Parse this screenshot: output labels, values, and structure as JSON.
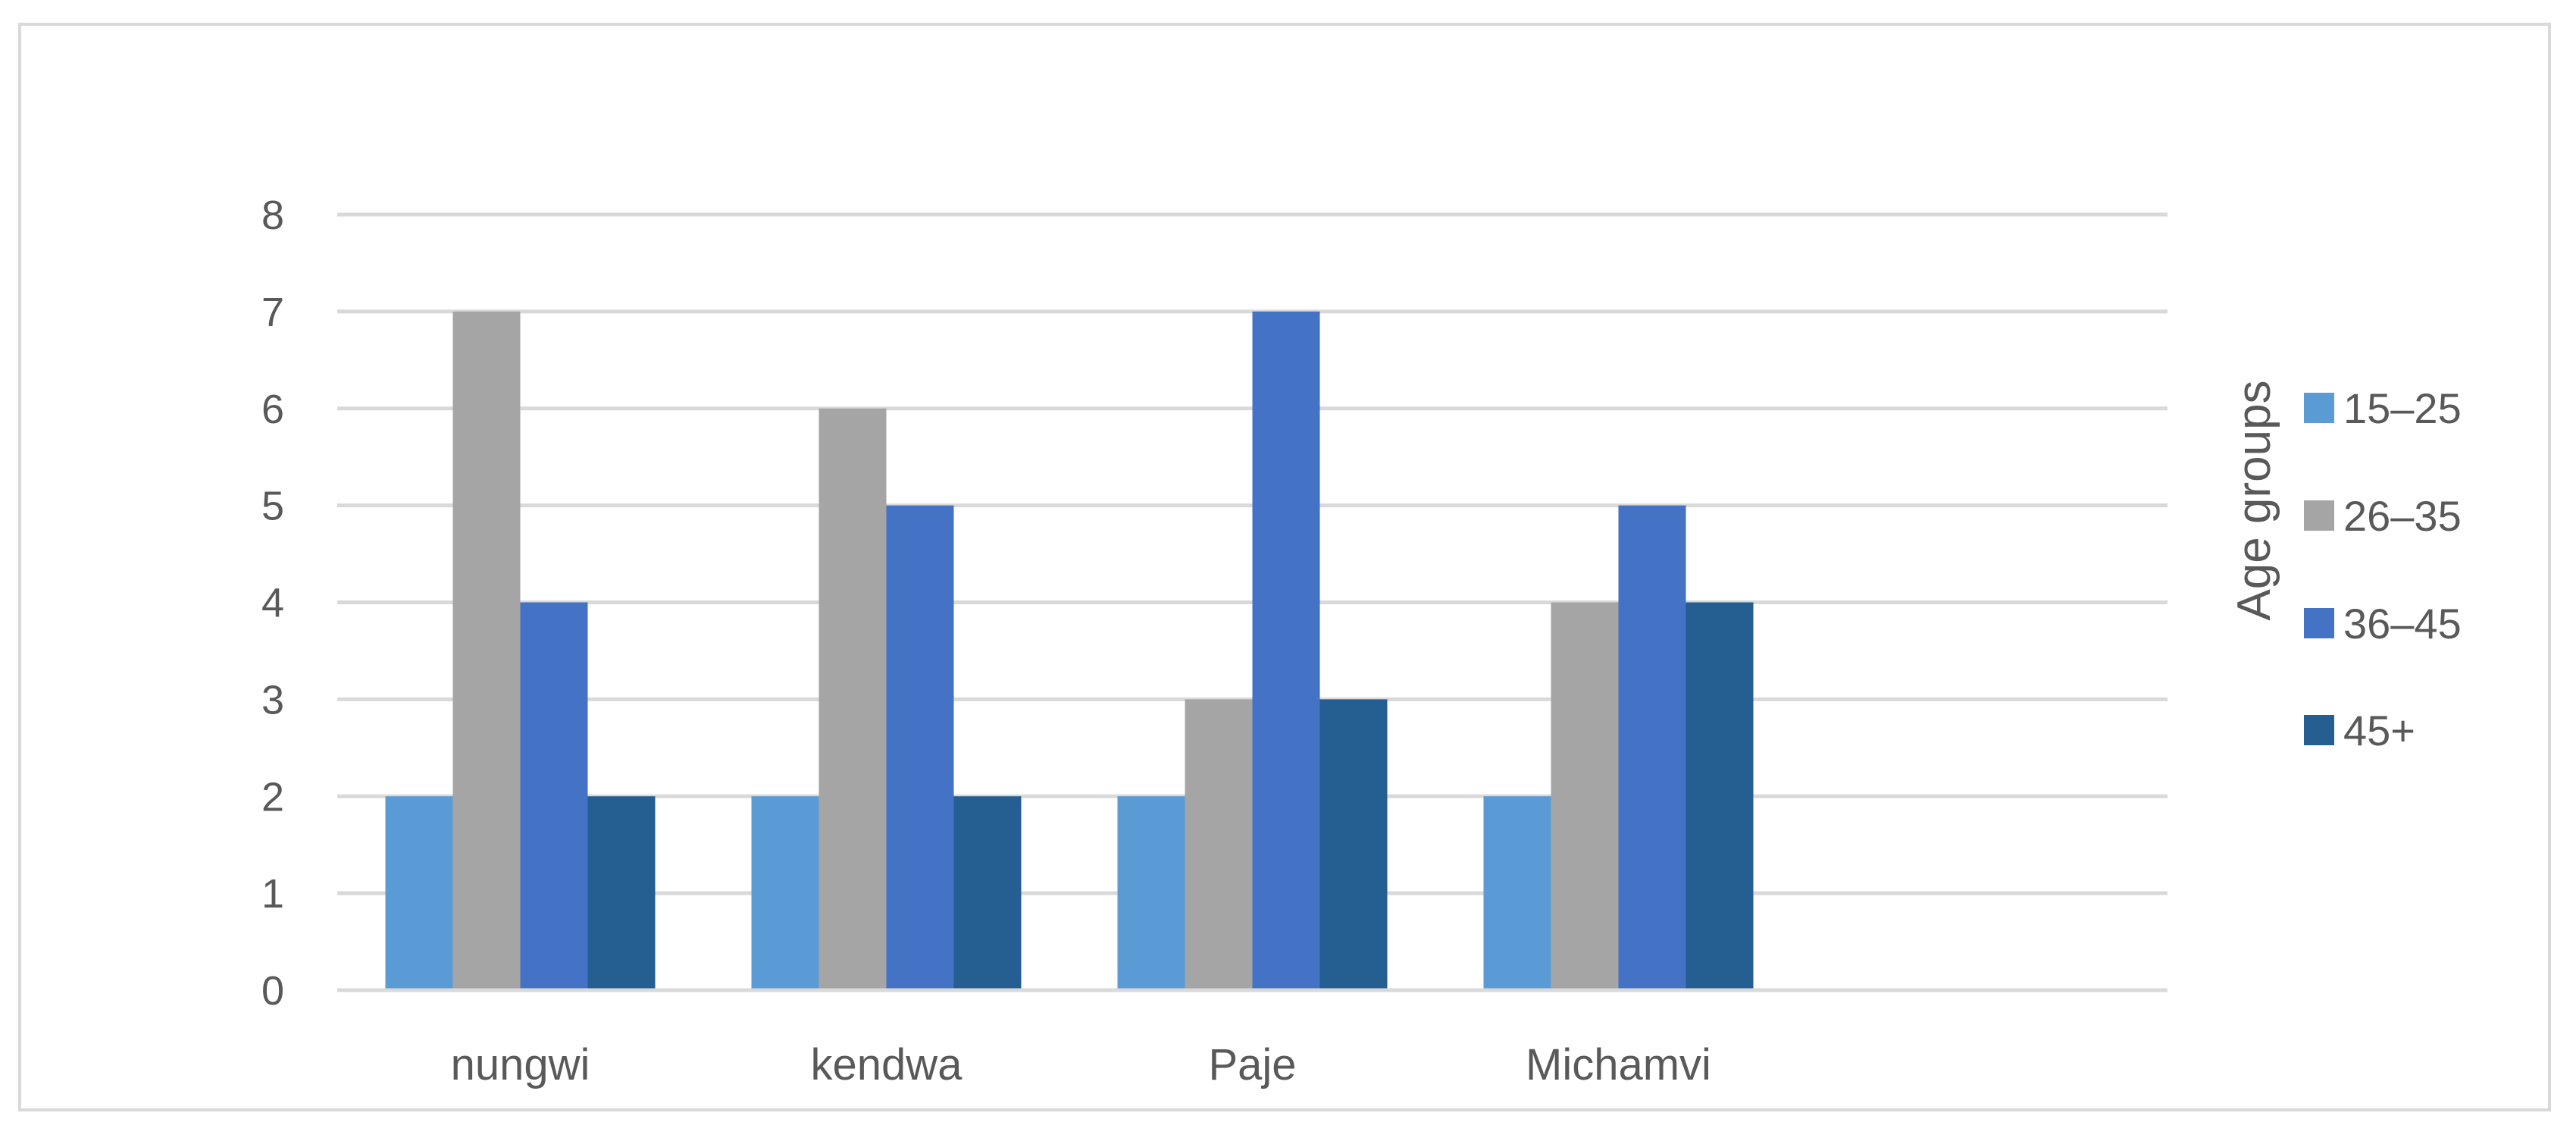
{
  "chart_data": {
    "type": "bar",
    "categories": [
      "nungwi",
      "kendwa",
      "Paje",
      "Michamvi"
    ],
    "series": [
      {
        "name": "15–25",
        "values": [
          2,
          2,
          2,
          2
        ],
        "color": "#5b9bd5"
      },
      {
        "name": "26–35",
        "values": [
          7,
          6,
          3,
          4
        ],
        "color": "#a5a5a5"
      },
      {
        "name": "36–45",
        "values": [
          4,
          5,
          7,
          5
        ],
        "color": "#4472c4"
      },
      {
        "name": "45+",
        "values": [
          2,
          2,
          3,
          4
        ],
        "color": "#255e91"
      }
    ],
    "legend_title": "Age groups",
    "legend_position": "right",
    "ylim": [
      0,
      8
    ],
    "yticks": [
      "0",
      "1",
      "2",
      "3",
      "4",
      "5",
      "6",
      "7",
      "8"
    ],
    "grid": true,
    "gridline_color": "#d9d9d9",
    "title": "",
    "xlabel": "",
    "ylabel": ""
  }
}
